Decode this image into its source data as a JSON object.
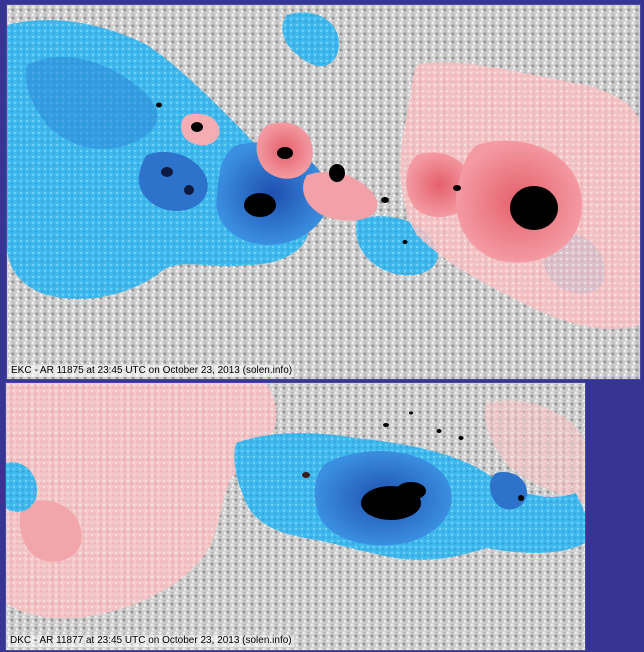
{
  "panels": [
    {
      "caption": "EKC - AR 11875 at 23:45 UTC on October 23, 2013 (solen.info)"
    },
    {
      "caption": "DKC - AR 11877 at 23:45 UTC on October 23, 2013 (solen.info)"
    }
  ],
  "colors": {
    "background": "#363594",
    "granulation": "#c9c9c9",
    "negative_polarity": "#38b6f0",
    "negative_penumbra": "#2a6fd6",
    "positive_polarity": "#f8b4b8",
    "positive_penumbra": "#f07a86",
    "umbra": "#000000"
  }
}
